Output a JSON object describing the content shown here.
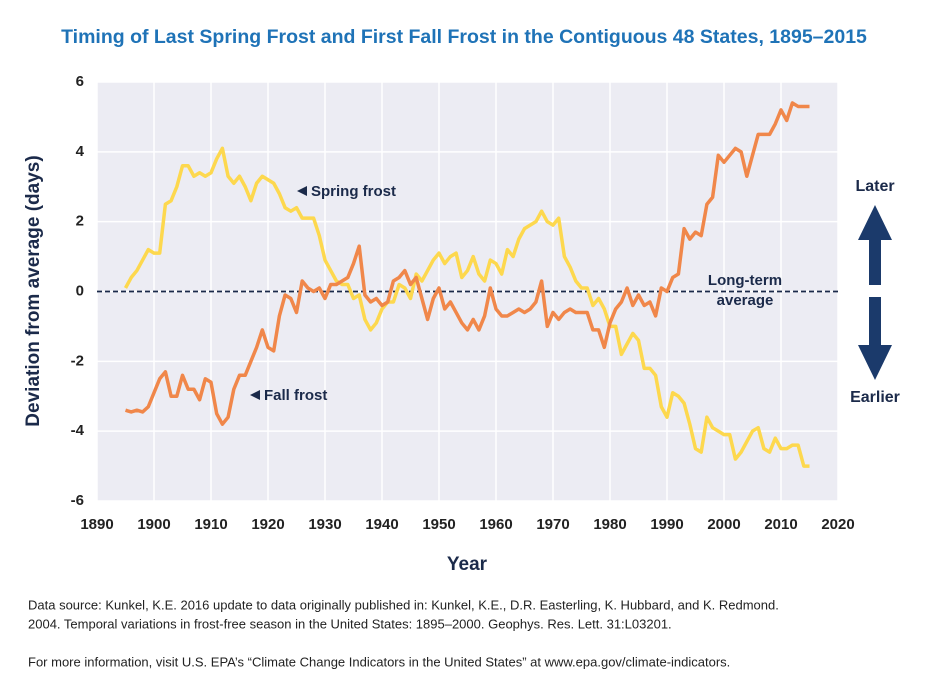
{
  "chart_data": {
    "type": "line",
    "title": "Timing of Last Spring Frost and First Fall Frost in the Contiguous 48 States, 1895–2015",
    "xlabel": "Year",
    "ylabel": "Deviation from average (days)",
    "x": [
      1895,
      1896,
      1897,
      1898,
      1899,
      1900,
      1901,
      1902,
      1903,
      1904,
      1905,
      1906,
      1907,
      1908,
      1909,
      1910,
      1911,
      1912,
      1913,
      1914,
      1915,
      1916,
      1917,
      1918,
      1919,
      1920,
      1921,
      1922,
      1923,
      1924,
      1925,
      1926,
      1927,
      1928,
      1929,
      1930,
      1931,
      1932,
      1933,
      1934,
      1935,
      1936,
      1937,
      1938,
      1939,
      1940,
      1941,
      1942,
      1943,
      1944,
      1945,
      1946,
      1947,
      1948,
      1949,
      1950,
      1951,
      1952,
      1953,
      1954,
      1955,
      1956,
      1957,
      1958,
      1959,
      1960,
      1961,
      1962,
      1963,
      1964,
      1965,
      1966,
      1967,
      1968,
      1969,
      1970,
      1971,
      1972,
      1973,
      1974,
      1975,
      1976,
      1977,
      1978,
      1979,
      1980,
      1981,
      1982,
      1983,
      1984,
      1985,
      1986,
      1987,
      1988,
      1989,
      1990,
      1991,
      1992,
      1993,
      1994,
      1995,
      1996,
      1997,
      1998,
      1999,
      2000,
      2001,
      2002,
      2003,
      2004,
      2005,
      2006,
      2007,
      2008,
      2009,
      2010,
      2011,
      2012,
      2013,
      2014,
      2015
    ],
    "series": [
      {
        "name": "Spring frost",
        "color": "#fdd84e",
        "values": [
          0.1,
          0.4,
          0.6,
          0.9,
          1.2,
          1.1,
          1.1,
          2.5,
          2.6,
          3.0,
          3.6,
          3.6,
          3.3,
          3.4,
          3.3,
          3.4,
          3.8,
          4.1,
          3.3,
          3.1,
          3.3,
          3.0,
          2.6,
          3.1,
          3.3,
          3.2,
          3.1,
          2.8,
          2.4,
          2.3,
          2.4,
          2.1,
          2.1,
          2.1,
          1.6,
          0.9,
          0.6,
          0.3,
          0.2,
          0.2,
          -0.2,
          -0.1,
          -0.8,
          -1.1,
          -0.9,
          -0.5,
          -0.3,
          -0.3,
          0.2,
          0.1,
          -0.2,
          0.5,
          0.3,
          0.6,
          0.9,
          1.1,
          0.8,
          1.0,
          1.1,
          0.4,
          0.6,
          1.0,
          0.5,
          0.3,
          0.9,
          0.8,
          0.5,
          1.2,
          1.0,
          1.5,
          1.8,
          1.9,
          2.0,
          2.3,
          2.0,
          1.9,
          2.1,
          1.0,
          0.7,
          0.3,
          0.1,
          0.1,
          -0.4,
          -0.2,
          -0.5,
          -1.0,
          -1.0,
          -1.8,
          -1.5,
          -1.2,
          -1.4,
          -2.2,
          -2.2,
          -2.4,
          -3.3,
          -3.6,
          -2.9,
          -3.0,
          -3.2,
          -3.8,
          -4.5,
          -4.6,
          -3.6,
          -3.9,
          -4.0,
          -4.1,
          -4.1,
          -4.8,
          -4.6,
          -4.3,
          -4.0,
          -3.9,
          -4.5,
          -4.6,
          -4.2,
          -4.5,
          -4.5,
          -4.4,
          -4.4,
          -5.0,
          -5.0
        ]
      },
      {
        "name": "Fall frost",
        "color": "#f0874a",
        "values": [
          -3.4,
          -3.45,
          -3.4,
          -3.45,
          -3.3,
          -2.9,
          -2.5,
          -2.3,
          -3.0,
          -3.0,
          -2.4,
          -2.8,
          -2.8,
          -3.1,
          -2.5,
          -2.6,
          -3.5,
          -3.8,
          -3.6,
          -2.8,
          -2.4,
          -2.4,
          -2.0,
          -1.6,
          -1.1,
          -1.6,
          -1.7,
          -0.7,
          -0.1,
          -0.2,
          -0.6,
          0.3,
          0.1,
          0.0,
          0.1,
          -0.2,
          0.2,
          0.2,
          0.3,
          0.4,
          0.8,
          1.3,
          -0.1,
          -0.3,
          -0.2,
          -0.4,
          -0.3,
          0.3,
          0.4,
          0.6,
          0.2,
          0.4,
          -0.2,
          -0.8,
          -0.2,
          0.1,
          -0.5,
          -0.3,
          -0.6,
          -0.9,
          -1.1,
          -0.8,
          -1.1,
          -0.7,
          0.1,
          -0.5,
          -0.7,
          -0.7,
          -0.6,
          -0.5,
          -0.6,
          -0.5,
          -0.3,
          0.3,
          -1.0,
          -0.6,
          -0.8,
          -0.6,
          -0.5,
          -0.6,
          -0.6,
          -0.6,
          -1.1,
          -1.1,
          -1.6,
          -0.9,
          -0.5,
          -0.3,
          0.1,
          -0.4,
          -0.1,
          -0.4,
          -0.3,
          -0.7,
          0.1,
          0.0,
          0.4,
          0.5,
          1.8,
          1.5,
          1.7,
          1.6,
          2.5,
          2.7,
          3.9,
          3.7,
          3.9,
          4.1,
          4.0,
          3.3,
          3.9,
          4.5,
          4.5,
          4.5,
          4.8,
          5.2,
          4.9,
          5.4,
          5.3,
          5.3,
          5.3
        ]
      }
    ],
    "xlim": [
      1890,
      2020
    ],
    "xticks": [
      1890,
      1900,
      1910,
      1920,
      1930,
      1940,
      1950,
      1960,
      1970,
      1980,
      1990,
      2000,
      2010,
      2020
    ],
    "ylim": [
      -6,
      6
    ],
    "yticks": [
      -6,
      -4,
      -2,
      0,
      2,
      4,
      6
    ],
    "grid": true,
    "reference_line": {
      "value": 0,
      "label": [
        "Long-term",
        "average"
      ]
    },
    "direction_labels": [
      "Later",
      "Earlier"
    ],
    "notes": [
      "Data source: Kunkel, K.E. 2016 update to data originally published in: Kunkel, K.E., D.R. Easterling, K. Hubbard, and K. Redmond.",
      "2004. Temporal variations in frost-free season in the United States: 1895–2000. Geophys. Res. Lett. 31:L03201.",
      "For more information, visit U.S. EPA’s “Climate Change Indicators in the United States” at www.epa.gov/climate-indicators."
    ]
  }
}
